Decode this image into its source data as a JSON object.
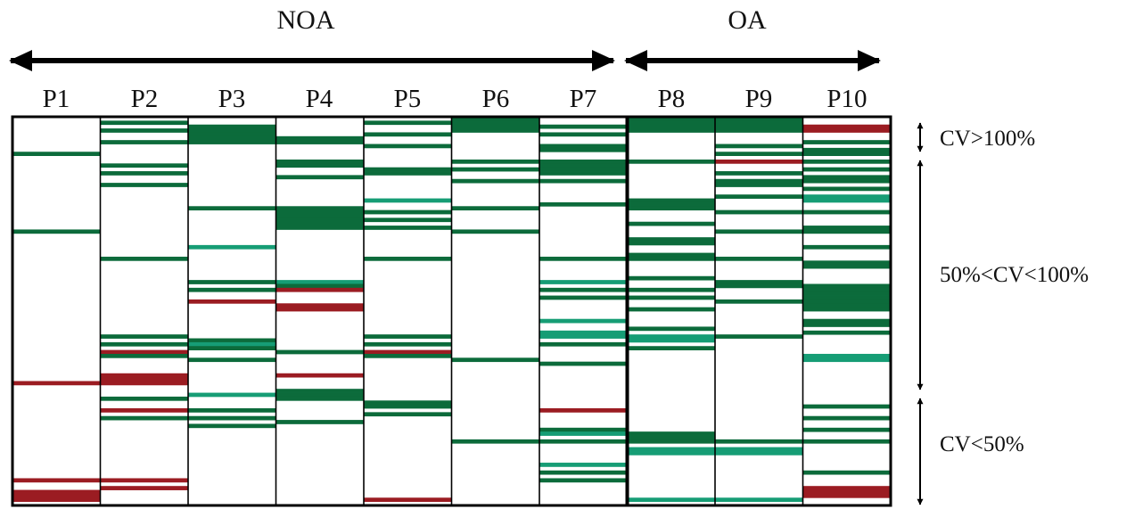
{
  "chart_data": {
    "type": "heatmap",
    "groups": [
      {
        "label": "NOA",
        "columns": [
          1,
          2,
          3,
          4,
          5,
          6,
          7
        ]
      },
      {
        "label": "OA",
        "columns": [
          8,
          9,
          10
        ]
      }
    ],
    "columns": [
      "P1",
      "P2",
      "P3",
      "P4",
      "P5",
      "P6",
      "P7",
      "P8",
      "P9",
      "P10"
    ],
    "row_count": 100,
    "row_bands": [
      {
        "label": "CV>100%",
        "rows": [
          1,
          8
        ]
      },
      {
        "label": "50%<CV<100%",
        "rows": [
          9,
          69
        ]
      },
      {
        "label": "CV<50%",
        "rows": [
          70,
          100
        ]
      }
    ],
    "color_legend": {
      "0": "#ffffff",
      "1": "#0c6b3b",
      "2": "#169d75",
      "3": "#9b1c22"
    },
    "cells": {
      "P1": [
        [
          10,
          1
        ],
        [
          30,
          1
        ],
        [
          69,
          3
        ],
        [
          94,
          3
        ],
        [
          97,
          3
        ],
        [
          98,
          3
        ],
        [
          99,
          3
        ]
      ],
      "P2": [
        [
          2,
          1
        ],
        [
          4,
          1
        ],
        [
          7,
          1
        ],
        [
          13,
          1
        ],
        [
          15,
          1
        ],
        [
          18,
          1
        ],
        [
          37,
          1
        ],
        [
          57,
          1
        ],
        [
          59,
          1
        ],
        [
          61,
          3
        ],
        [
          62,
          1
        ],
        [
          67,
          3
        ],
        [
          68,
          3
        ],
        [
          69,
          3
        ],
        [
          73,
          1
        ],
        [
          76,
          3
        ],
        [
          78,
          1
        ],
        [
          94,
          3
        ],
        [
          96,
          3
        ]
      ],
      "P3": [
        [
          3,
          1
        ],
        [
          4,
          1
        ],
        [
          5,
          1
        ],
        [
          6,
          1
        ],
        [
          7,
          1
        ],
        [
          24,
          1
        ],
        [
          34,
          2
        ],
        [
          43,
          1
        ],
        [
          45,
          1
        ],
        [
          48,
          3
        ],
        [
          58,
          1
        ],
        [
          59,
          2
        ],
        [
          60,
          1
        ],
        [
          63,
          1
        ],
        [
          72,
          2
        ],
        [
          76,
          1
        ],
        [
          78,
          1
        ],
        [
          80,
          1
        ]
      ],
      "P4": [
        [
          6,
          1
        ],
        [
          7,
          1
        ],
        [
          12,
          1
        ],
        [
          13,
          1
        ],
        [
          16,
          1
        ],
        [
          24,
          1
        ],
        [
          25,
          1
        ],
        [
          26,
          1
        ],
        [
          27,
          1
        ],
        [
          28,
          1
        ],
        [
          29,
          1
        ],
        [
          43,
          2
        ],
        [
          44,
          1
        ],
        [
          45,
          3
        ],
        [
          49,
          3
        ],
        [
          50,
          3
        ],
        [
          61,
          1
        ],
        [
          67,
          3
        ],
        [
          71,
          1
        ],
        [
          72,
          1
        ],
        [
          73,
          1
        ],
        [
          79,
          1
        ]
      ],
      "P5": [
        [
          2,
          1
        ],
        [
          5,
          1
        ],
        [
          8,
          1
        ],
        [
          14,
          1
        ],
        [
          15,
          1
        ],
        [
          22,
          2
        ],
        [
          25,
          1
        ],
        [
          27,
          1
        ],
        [
          29,
          1
        ],
        [
          37,
          1
        ],
        [
          57,
          1
        ],
        [
          59,
          1
        ],
        [
          61,
          3
        ],
        [
          62,
          1
        ],
        [
          74,
          1
        ],
        [
          75,
          1
        ],
        [
          77,
          1
        ],
        [
          99,
          3
        ]
      ],
      "P6": [
        [
          1,
          1
        ],
        [
          2,
          1
        ],
        [
          3,
          1
        ],
        [
          4,
          1
        ],
        [
          12,
          1
        ],
        [
          14,
          1
        ],
        [
          17,
          1
        ],
        [
          24,
          1
        ],
        [
          30,
          1
        ],
        [
          63,
          1
        ],
        [
          84,
          1
        ]
      ],
      "P7": [
        [
          3,
          1
        ],
        [
          5,
          1
        ],
        [
          8,
          1
        ],
        [
          9,
          1
        ],
        [
          12,
          1
        ],
        [
          13,
          1
        ],
        [
          14,
          1
        ],
        [
          15,
          1
        ],
        [
          17,
          1
        ],
        [
          23,
          1
        ],
        [
          37,
          1
        ],
        [
          43,
          2
        ],
        [
          45,
          1
        ],
        [
          47,
          1
        ],
        [
          53,
          2
        ],
        [
          56,
          2
        ],
        [
          57,
          2
        ],
        [
          59,
          1
        ],
        [
          64,
          1
        ],
        [
          76,
          3
        ],
        [
          81,
          1
        ],
        [
          82,
          2
        ],
        [
          84,
          1
        ],
        [
          90,
          2
        ],
        [
          92,
          1
        ],
        [
          94,
          1
        ]
      ],
      "P8": [
        [
          1,
          1
        ],
        [
          2,
          1
        ],
        [
          3,
          1
        ],
        [
          4,
          1
        ],
        [
          12,
          1
        ],
        [
          22,
          1
        ],
        [
          23,
          1
        ],
        [
          24,
          1
        ],
        [
          28,
          1
        ],
        [
          32,
          1
        ],
        [
          33,
          1
        ],
        [
          36,
          1
        ],
        [
          37,
          1
        ],
        [
          42,
          1
        ],
        [
          45,
          1
        ],
        [
          47,
          1
        ],
        [
          50,
          1
        ],
        [
          55,
          1
        ],
        [
          57,
          2
        ],
        [
          58,
          2
        ],
        [
          60,
          1
        ],
        [
          82,
          1
        ],
        [
          83,
          1
        ],
        [
          84,
          1
        ],
        [
          86,
          2
        ],
        [
          87,
          2
        ],
        [
          99,
          2
        ]
      ],
      "P9": [
        [
          1,
          1
        ],
        [
          2,
          1
        ],
        [
          3,
          1
        ],
        [
          4,
          1
        ],
        [
          8,
          1
        ],
        [
          10,
          1
        ],
        [
          12,
          3
        ],
        [
          15,
          1
        ],
        [
          17,
          1
        ],
        [
          18,
          1
        ],
        [
          21,
          1
        ],
        [
          25,
          1
        ],
        [
          30,
          1
        ],
        [
          37,
          1
        ],
        [
          43,
          1
        ],
        [
          44,
          1
        ],
        [
          48,
          1
        ],
        [
          57,
          1
        ],
        [
          84,
          1
        ],
        [
          86,
          2
        ],
        [
          87,
          2
        ],
        [
          99,
          2
        ]
      ],
      "P10": [
        [
          3,
          3
        ],
        [
          4,
          3
        ],
        [
          7,
          1
        ],
        [
          9,
          1
        ],
        [
          10,
          1
        ],
        [
          12,
          1
        ],
        [
          14,
          1
        ],
        [
          16,
          1
        ],
        [
          17,
          1
        ],
        [
          19,
          1
        ],
        [
          21,
          2
        ],
        [
          22,
          2
        ],
        [
          25,
          1
        ],
        [
          29,
          1
        ],
        [
          30,
          1
        ],
        [
          34,
          1
        ],
        [
          38,
          1
        ],
        [
          39,
          1
        ],
        [
          44,
          1
        ],
        [
          45,
          1
        ],
        [
          46,
          1
        ],
        [
          47,
          1
        ],
        [
          48,
          1
        ],
        [
          49,
          1
        ],
        [
          50,
          1
        ],
        [
          53,
          1
        ],
        [
          54,
          1
        ],
        [
          56,
          1
        ],
        [
          62,
          2
        ],
        [
          63,
          2
        ],
        [
          75,
          1
        ],
        [
          78,
          1
        ],
        [
          81,
          1
        ],
        [
          84,
          1
        ],
        [
          92,
          1
        ],
        [
          96,
          3
        ],
        [
          97,
          3
        ],
        [
          98,
          3
        ]
      ]
    }
  }
}
